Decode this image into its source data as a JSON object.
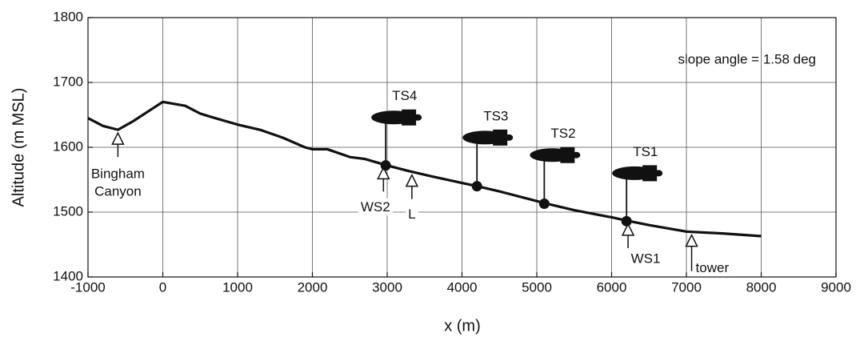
{
  "chart_data": {
    "type": "line",
    "xlabel": "x (m)",
    "ylabel": "Altitude (m MSL)",
    "xlim": [
      -1000,
      9000
    ],
    "ylim": [
      1400,
      1800
    ],
    "xticks": [
      -1000,
      0,
      1000,
      2000,
      3000,
      4000,
      5000,
      6000,
      7000,
      8000,
      9000
    ],
    "yticks": [
      1400,
      1500,
      1600,
      1700,
      1800
    ],
    "grid": true,
    "series": [
      {
        "color": "#111111",
        "x": [
          -1000,
          -800,
          -600,
          -400,
          -200,
          0,
          300,
          500,
          700,
          1000,
          1300,
          1600,
          1900,
          2000,
          2200,
          2500,
          2700,
          3000,
          3300,
          3600,
          4000,
          4200,
          4500,
          5000,
          5100,
          5500,
          6000,
          6200,
          6500,
          7000,
          7500,
          8000
        ],
        "values": [
          1645,
          1633,
          1627,
          1640,
          1655,
          1670,
          1664,
          1652,
          1645,
          1635,
          1627,
          1615,
          1600,
          1597,
          1597,
          1585,
          1582,
          1572,
          1563,
          1555,
          1545,
          1540,
          1532,
          1517,
          1514,
          1503,
          1492,
          1487,
          1480,
          1470,
          1467,
          1463
        ]
      }
    ],
    "tethersondes": [
      {
        "name": "TS4",
        "x": 2980,
        "surface": 1572,
        "balloon": 1646
      },
      {
        "name": "TS3",
        "x": 4200,
        "surface": 1540,
        "balloon": 1615
      },
      {
        "name": "TS2",
        "x": 5100,
        "surface": 1513,
        "balloon": 1588
      },
      {
        "name": "TS1",
        "x": 6200,
        "surface": 1486,
        "balloon": 1560
      }
    ],
    "sites": [
      {
        "text": [
          "Bingham",
          "Canyon"
        ],
        "x": -600
      },
      {
        "text": [
          "WS2"
        ],
        "x": 2950
      },
      {
        "text": [
          "L"
        ],
        "x": 3330
      },
      {
        "text": [
          "WS1"
        ],
        "x": 6220
      },
      {
        "text": [
          "tower"
        ],
        "x": 7070
      }
    ],
    "annotation": "slope angle = 1.58 deg"
  }
}
